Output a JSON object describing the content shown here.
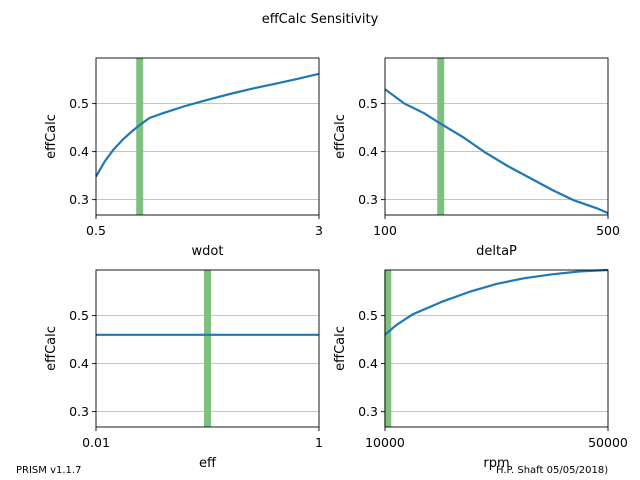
{
  "figure_title": "effCalc Sensitivity",
  "footer": {
    "left": "PRISM v1.1.7",
    "right": "H.P. Shaft 05/05/2018)"
  },
  "colors": {
    "line": "#1f77b4",
    "marker_band": "#7fbf7f",
    "grid": "#b0b0b0",
    "axes": "#000000"
  },
  "chart_data": [
    {
      "type": "line",
      "xlabel": "wdot",
      "ylabel": "effCalc",
      "xlim": [
        0.5,
        3
      ],
      "ylim": [
        0.268,
        0.595
      ],
      "xticks": [
        "0.5",
        "3"
      ],
      "yticks": [
        "0.3",
        "0.4",
        "0.5"
      ],
      "ytick_values": [
        0.3,
        0.4,
        0.5
      ],
      "grid_y": true,
      "marker_x": 0.99,
      "x": [
        0.5,
        0.6,
        0.7,
        0.8,
        0.9,
        1.0,
        1.1,
        1.25,
        1.5,
        1.75,
        2.0,
        2.25,
        2.5,
        2.75,
        3.0
      ],
      "y": [
        0.348,
        0.38,
        0.405,
        0.425,
        0.442,
        0.457,
        0.47,
        0.48,
        0.495,
        0.508,
        0.52,
        0.531,
        0.541,
        0.551,
        0.562
      ]
    },
    {
      "type": "line",
      "xlabel": "deltaP",
      "ylabel": "effCalc",
      "xlim": [
        100,
        500
      ],
      "ylim": [
        0.268,
        0.595
      ],
      "xticks": [
        "100",
        "500"
      ],
      "yticks": [
        "0.3",
        "0.4",
        "0.5"
      ],
      "ytick_values": [
        0.3,
        0.4,
        0.5
      ],
      "grid_y": true,
      "marker_x": 200,
      "x": [
        100,
        135,
        170,
        200,
        240,
        280,
        320,
        360,
        400,
        440,
        480,
        500
      ],
      "y": [
        0.53,
        0.5,
        0.48,
        0.458,
        0.43,
        0.398,
        0.37,
        0.345,
        0.32,
        0.298,
        0.282,
        0.272
      ]
    },
    {
      "type": "line",
      "xlabel": "eff",
      "ylabel": "effCalc",
      "xlim": [
        0.01,
        1
      ],
      "xscale": "log",
      "ylim": [
        0.268,
        0.595
      ],
      "xticks": [
        "0.01",
        "1"
      ],
      "yticks": [
        "0.3",
        "0.4",
        "0.5"
      ],
      "ytick_values": [
        0.3,
        0.4,
        0.5
      ],
      "grid_y": true,
      "marker_x": 0.1,
      "x": [
        0.01,
        0.03,
        0.1,
        0.3,
        1
      ],
      "y": [
        0.46,
        0.46,
        0.46,
        0.46,
        0.46
      ]
    },
    {
      "type": "line",
      "xlabel": "rpm",
      "ylabel": "effCalc",
      "xlim": [
        10000,
        50000
      ],
      "ylim": [
        0.268,
        0.595
      ],
      "xticks": [
        "10000",
        "50000"
      ],
      "yticks": [
        "0.3",
        "0.4",
        "0.5"
      ],
      "ytick_values": [
        0.3,
        0.4,
        0.5
      ],
      "grid_y": true,
      "marker_x": 10500,
      "x": [
        10000,
        12000,
        15000,
        20000,
        25000,
        30000,
        35000,
        40000,
        45000,
        50000
      ],
      "y": [
        0.46,
        0.48,
        0.503,
        0.528,
        0.549,
        0.566,
        0.578,
        0.586,
        0.592,
        0.595
      ]
    }
  ]
}
